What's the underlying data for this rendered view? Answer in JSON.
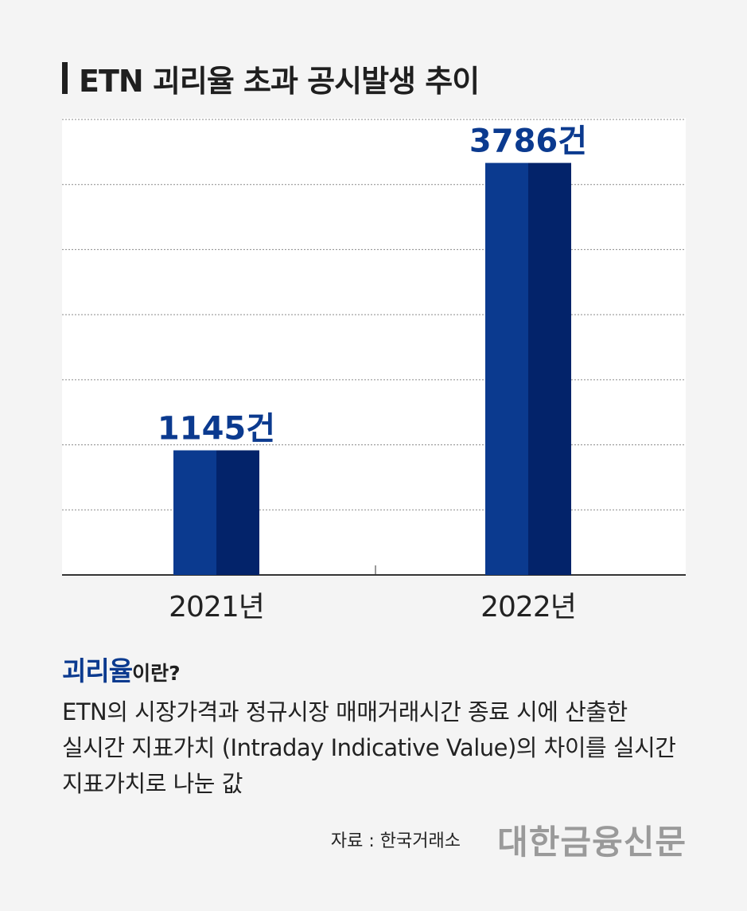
{
  "title": "ETN 괴리율 초과 공시발생 추이",
  "chart_data": {
    "type": "bar",
    "categories": [
      "2021년",
      "2022년"
    ],
    "values": [
      1145,
      3786
    ],
    "value_labels": [
      "1145건",
      "3786건"
    ],
    "ylim": [
      0,
      4200
    ],
    "grid": true,
    "colors": {
      "bar_light": "#0b3a8f",
      "bar_dark": "#03236a",
      "label": "#0b3a8f"
    }
  },
  "definition": {
    "term": "괴리율",
    "suffix": "이란?",
    "lines": [
      "ETN의 시장가격과 정규시장 매매거래시간 종료 시에 산출한",
      "실시간 지표가치 (Intraday Indicative Value)의 차이를 실시간",
      "지표가치로 나눈 값"
    ]
  },
  "source": "자료 : 한국거래소",
  "brand": "대한금융신문"
}
